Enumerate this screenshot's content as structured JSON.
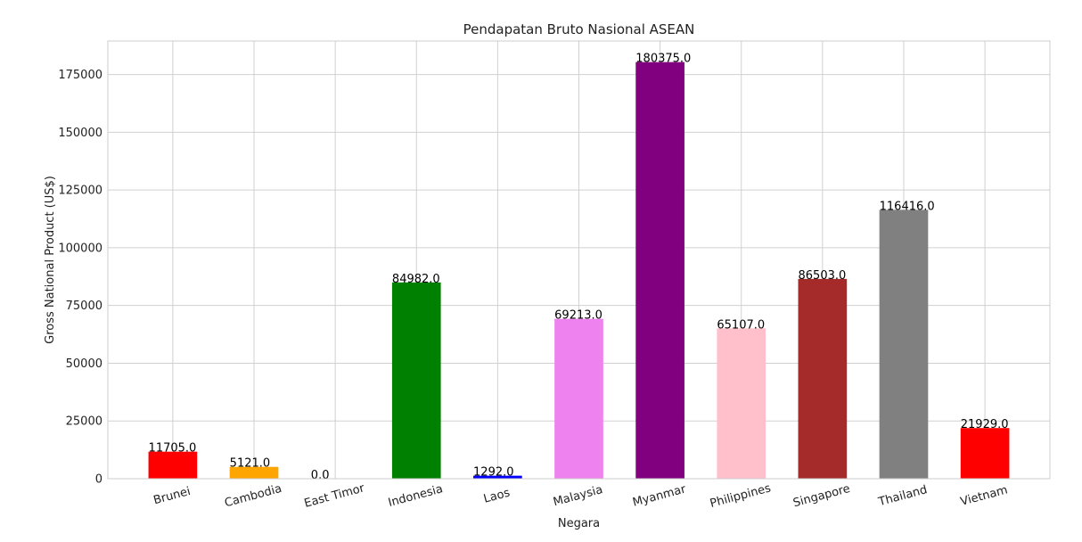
{
  "chart_data": {
    "type": "bar",
    "title": "Pendapatan Bruto Nasional ASEAN",
    "xlabel": "Negara",
    "ylabel": "Gross National Product (US$)",
    "ylim": [
      0,
      189500
    ],
    "yticks": [
      0,
      25000,
      50000,
      75000,
      100000,
      125000,
      150000,
      175000
    ],
    "grid": true,
    "categories": [
      "Brunei",
      "Cambodia",
      "East Timor",
      "Indonesia",
      "Laos",
      "Malaysia",
      "Myanmar",
      "Philippines",
      "Singapore",
      "Thailand",
      "Vietnam"
    ],
    "values": [
      11705.0,
      5121.0,
      0.0,
      84982.0,
      1292.0,
      69213.0,
      180375.0,
      65107.0,
      86503.0,
      116416.0,
      21929.0
    ],
    "value_labels": [
      "11705.0",
      "5121.0",
      "0.0",
      "84982.0",
      "1292.0",
      "69213.0",
      "180375.0",
      "65107.0",
      "86503.0",
      "116416.0",
      "21929.0"
    ],
    "colors": [
      "#ff0000",
      "#ffa500",
      "#ffff00",
      "#008000",
      "#0000ff",
      "#ee82ee",
      "#800080",
      "#ffc0cb",
      "#a52a2a",
      "#808080",
      "#ff0000"
    ]
  }
}
